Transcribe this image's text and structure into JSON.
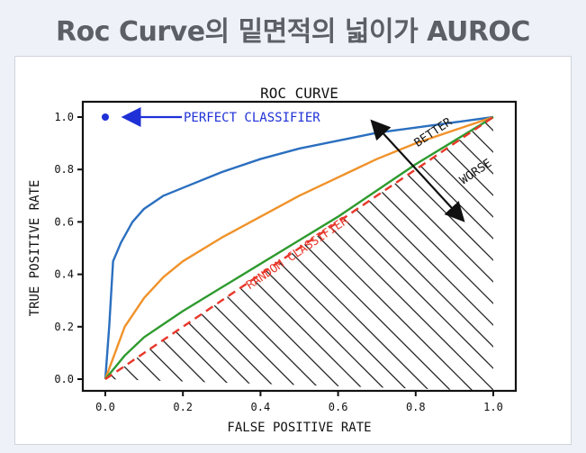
{
  "page": {
    "title": "Roc Curve의 밑면적의 넓이가 AUROC"
  },
  "chart_data": {
    "type": "line",
    "title": "ROC CURVE",
    "xlabel": "FALSE POSITIVE RATE",
    "ylabel": "TRUE POSITIVE RATE",
    "xlim": [
      0,
      1
    ],
    "ylim": [
      0,
      1
    ],
    "xticks": [
      "0.0",
      "0.2",
      "0.4",
      "0.6",
      "0.8",
      "1.0"
    ],
    "yticks": [
      "0.0",
      "0.2",
      "0.4",
      "0.6",
      "0.8",
      "1.0"
    ],
    "grid": false,
    "series": [
      {
        "color": "#2b6fbf",
        "x": [
          0.0,
          0.01,
          0.02,
          0.04,
          0.07,
          0.1,
          0.15,
          0.2,
          0.3,
          0.4,
          0.5,
          0.6,
          0.7,
          0.8,
          0.9,
          1.0
        ],
        "y": [
          0.0,
          0.2,
          0.45,
          0.52,
          0.6,
          0.65,
          0.7,
          0.73,
          0.79,
          0.84,
          0.88,
          0.91,
          0.94,
          0.96,
          0.98,
          1.0
        ]
      },
      {
        "color": "#f0922a",
        "x": [
          0.0,
          0.02,
          0.05,
          0.1,
          0.15,
          0.2,
          0.3,
          0.4,
          0.5,
          0.6,
          0.7,
          0.8,
          0.9,
          1.0
        ],
        "y": [
          0.0,
          0.08,
          0.2,
          0.31,
          0.39,
          0.45,
          0.54,
          0.62,
          0.7,
          0.77,
          0.84,
          0.9,
          0.95,
          1.0
        ]
      },
      {
        "color": "#2e9a2e",
        "x": [
          0.0,
          0.05,
          0.1,
          0.15,
          0.2,
          0.3,
          0.4,
          0.5,
          0.6,
          0.7,
          0.8,
          0.9,
          1.0
        ],
        "y": [
          0.0,
          0.09,
          0.16,
          0.21,
          0.26,
          0.35,
          0.44,
          0.53,
          0.62,
          0.72,
          0.82,
          0.91,
          1.0
        ]
      },
      {
        "color": "#e8372a",
        "dashed": true,
        "x": [
          0.0,
          1.0
        ],
        "y": [
          0.0,
          1.0
        ]
      }
    ],
    "perfect_point": {
      "x": 0.0,
      "y": 1.0,
      "color": "#1f31d6"
    },
    "annotations": {
      "perfect": "PERFECT CLASSIFIER",
      "random": "RANDOM CLASSIFIER",
      "better": "BETTER",
      "worse": "WORSE"
    },
    "hatched_region": "below random classifier diagonal"
  }
}
